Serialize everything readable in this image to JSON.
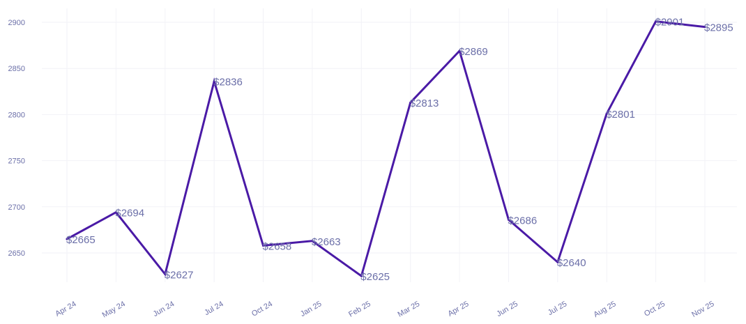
{
  "chart_data": {
    "type": "line",
    "title": "",
    "xlabel": "",
    "ylabel": "",
    "categories": [
      "Apr 24",
      "May 24",
      "Jun 24",
      "Jul 24",
      "Oct 24",
      "Jan 25",
      "Feb 25",
      "Mar 25",
      "Apr 25",
      "Jun 25",
      "Jul 25",
      "Aug 25",
      "Oct 25",
      "Nov 25"
    ],
    "series": [
      {
        "values": [
          2665,
          2694,
          2627,
          2836,
          2658,
          2663,
          2625,
          2813,
          2869,
          2686,
          2640,
          2801,
          2901,
          2895
        ],
        "data_labels": [
          "$2665",
          "$2694",
          "$2627",
          "$2836",
          "$2658",
          "$2663",
          "$2625",
          "$2813",
          "$2869",
          "$2686",
          "$2640",
          "$2801",
          "$2901",
          "$2895"
        ]
      }
    ],
    "y_ticks": [
      2650,
      2700,
      2750,
      2800,
      2850,
      2900
    ],
    "ylim": [
      2615,
      2912
    ],
    "grid": true,
    "legend": "none",
    "colors": {
      "line": "#4a1aa6",
      "labels": "#6b6fa8",
      "grid": "#f2f2f7"
    }
  }
}
